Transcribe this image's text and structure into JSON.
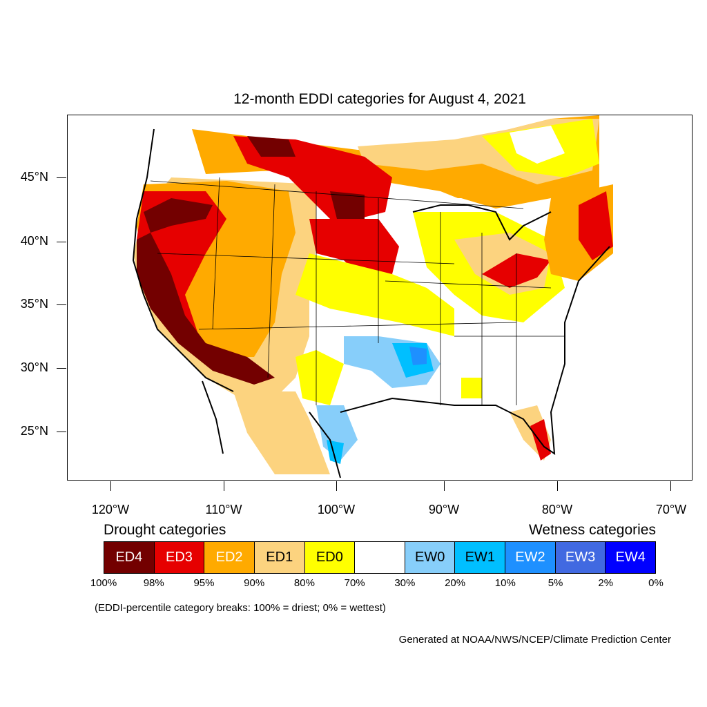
{
  "title": "12-month EDDI categories for August 4, 2021",
  "map": {
    "y_ticks": [
      "45°N",
      "40°N",
      "35°N",
      "30°N",
      "25°N"
    ],
    "x_ticks": [
      "120°W",
      "110°W",
      "100°W",
      "90°W",
      "80°W",
      "70°W"
    ]
  },
  "legend": {
    "drought_heading": "Drought categories",
    "wetness_heading": "Wetness categories",
    "categories": [
      {
        "label": "ED4",
        "color": "#730000",
        "text_color": "#ffffff"
      },
      {
        "label": "ED3",
        "color": "#e60000",
        "text_color": "#ffffff"
      },
      {
        "label": "ED2",
        "color": "#ffaa00",
        "text_color": "#ffffff"
      },
      {
        "label": "ED1",
        "color": "#fcd37f",
        "text_color": "#000000"
      },
      {
        "label": "ED0",
        "color": "#ffff00",
        "text_color": "#000000"
      },
      {
        "label": "",
        "color": "#ffffff",
        "text_color": "#000000"
      },
      {
        "label": "EW0",
        "color": "#87cefa",
        "text_color": "#000000"
      },
      {
        "label": "EW1",
        "color": "#00bfff",
        "text_color": "#000000"
      },
      {
        "label": "EW2",
        "color": "#1e90ff",
        "text_color": "#ffffff"
      },
      {
        "label": "EW3",
        "color": "#4169e1",
        "text_color": "#ffffff"
      },
      {
        "label": "EW4",
        "color": "#0000ff",
        "text_color": "#ffffff"
      }
    ],
    "percentiles": [
      "100%",
      "98%",
      "95%",
      "90%",
      "80%",
      "70%",
      "30%",
      "20%",
      "10%",
      "5%",
      "2%",
      "0%"
    ]
  },
  "note": "(EDDI-percentile category breaks: 100% = driest; 0% = wettest)",
  "credit": "Generated at NOAA/NWS/NCEP/Climate Prediction Center"
}
